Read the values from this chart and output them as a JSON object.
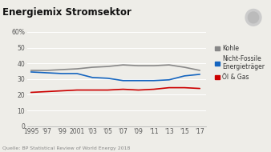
{
  "title": "Energiemix Stromsektor",
  "source": "Quelle: BP Statistical Review of World Energy 2018",
  "years": [
    1995,
    1997,
    1999,
    2001,
    2003,
    2005,
    2007,
    2009,
    2011,
    2013,
    2015,
    2017
  ],
  "kohle": [
    35.5,
    35.5,
    36.0,
    36.5,
    37.5,
    38.0,
    39.0,
    38.5,
    38.5,
    39.0,
    37.5,
    35.5
  ],
  "nicht_fossile": [
    34.5,
    34.0,
    33.5,
    33.5,
    31.0,
    30.5,
    29.0,
    29.0,
    29.0,
    29.5,
    32.0,
    33.0
  ],
  "oel_gas": [
    21.5,
    22.0,
    22.5,
    23.0,
    23.0,
    23.0,
    23.5,
    23.0,
    23.5,
    24.5,
    24.5,
    24.0
  ],
  "kohle_color": "#888888",
  "nicht_fossile_color": "#1565c0",
  "oel_gas_color": "#cc0000",
  "ylim": [
    0,
    60
  ],
  "yticks": [
    0,
    10,
    20,
    30,
    40,
    50,
    60
  ],
  "ytick_labels": [
    "0",
    "10",
    "20",
    "30",
    "40",
    "50",
    "60%"
  ],
  "bg_color": "#eeede8",
  "grid_color": "#ffffff",
  "title_fontsize": 8.5,
  "tick_fontsize": 5.5,
  "legend_fontsize": 5.5,
  "source_fontsize": 4.5,
  "line_width": 1.2
}
